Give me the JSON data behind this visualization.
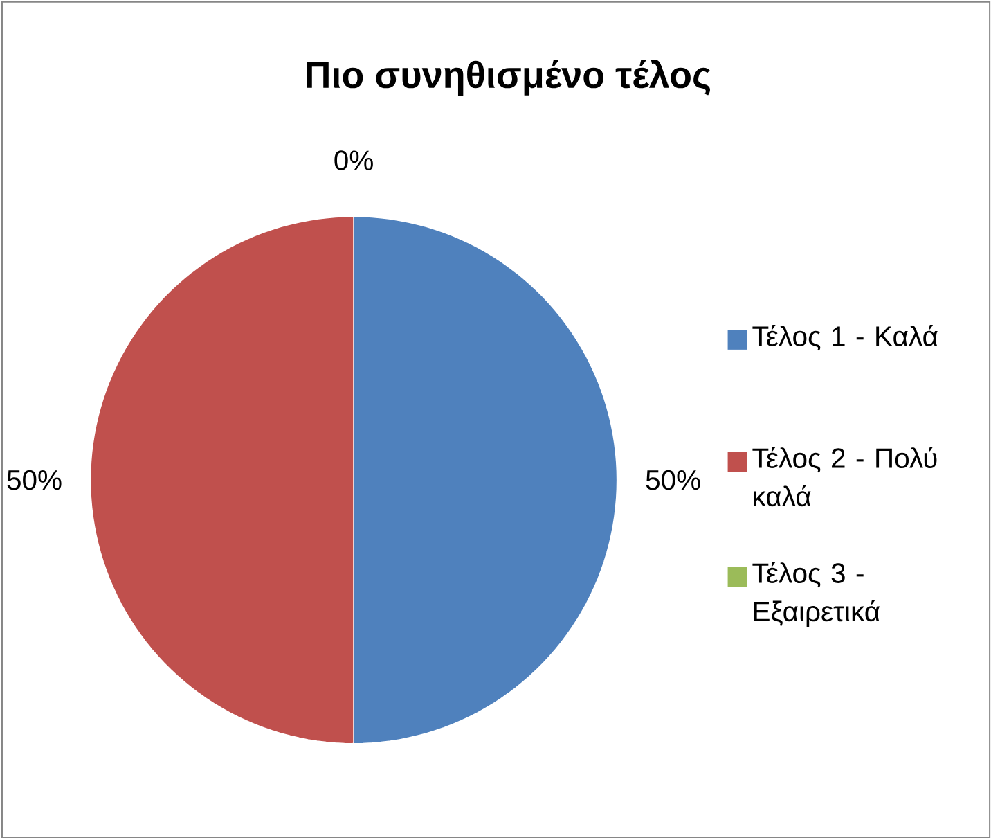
{
  "chart_data": {
    "type": "pie",
    "title": "Πιο συνηθισμένο τέλος",
    "categories": [
      "Τέλος 1 - Καλά",
      "Τέλος 2 - Πολύ καλά",
      "Τέλος 3 - Εξαιρετικά"
    ],
    "values": [
      50,
      50,
      0
    ],
    "value_labels": [
      "50%",
      "50%",
      "0%"
    ],
    "colors": [
      "#4f81bd",
      "#c0504d",
      "#9bbb59"
    ],
    "legend": "right"
  }
}
